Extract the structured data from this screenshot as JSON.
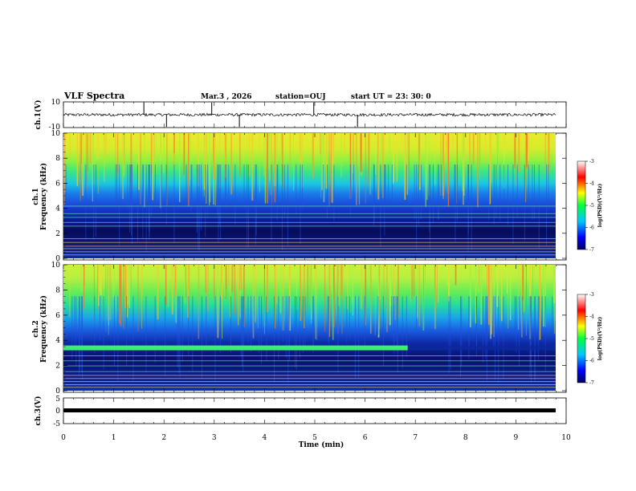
{
  "header": {
    "title": "VLF Spectra",
    "date": "Mar.3  , 2026",
    "station": "station=OUJ",
    "start": "start  UT  =   23: 30: 0"
  },
  "chart_data": [
    {
      "type": "line",
      "name": "ch1-waveform",
      "ylabel": "ch.1(V)",
      "xlim": [
        0,
        10
      ],
      "ylim": [
        -10,
        10
      ],
      "yticks": [
        "10",
        "-10"
      ],
      "baseline": 0,
      "notable_spikes_min": [
        1.6,
        2.05,
        2.95,
        3.5,
        4.98,
        5.85
      ]
    },
    {
      "type": "heatmap",
      "name": "ch1-spectrogram",
      "ylabel_line1": "ch.1",
      "ylabel_line2": "Frequency (kHz)",
      "xlim": [
        0,
        10
      ],
      "ylim": [
        0,
        10
      ],
      "yticks": [
        "0",
        "2",
        "4",
        "6",
        "8",
        "10"
      ],
      "colorbar": {
        "label": "log(PSD)(V²/Hz)",
        "range": [
          -7,
          -3
        ],
        "ticks": [
          "-3",
          "-4",
          "-5",
          "-6",
          "-7"
        ]
      },
      "bands_khz": [
        {
          "from": 7.0,
          "to": 10.0,
          "level": "high"
        },
        {
          "from": 5.2,
          "to": 7.0,
          "level": "mid"
        },
        {
          "from": 3.0,
          "to": 5.2,
          "level": "low"
        },
        {
          "from": 0.0,
          "to": 3.0,
          "level": "very-low"
        }
      ]
    },
    {
      "type": "heatmap",
      "name": "ch2-spectrogram",
      "ylabel_line1": "ch.2",
      "ylabel_line2": "Frequency (kHz)",
      "xlim": [
        0,
        10
      ],
      "ylim": [
        0,
        10
      ],
      "yticks": [
        "0",
        "2",
        "4",
        "6",
        "8",
        "10"
      ],
      "colorbar": {
        "label": "log(PSD)(V²/Hz)",
        "range": [
          -7,
          -3
        ],
        "ticks": [
          "-3",
          "-4",
          "-5",
          "-6",
          "-7"
        ]
      },
      "tone_line": {
        "freq_khz": 3.4,
        "until_min": 6.85
      }
    },
    {
      "type": "line",
      "name": "ch3-waveform",
      "ylabel": "ch.3(V)",
      "xlim": [
        0,
        10
      ],
      "ylim": [
        -5,
        5
      ],
      "yticks": [
        "5",
        "0",
        "-5"
      ],
      "baseline": 0
    }
  ],
  "xaxis": {
    "label": "Time  (min)",
    "ticks": [
      "0",
      "1",
      "2",
      "3",
      "4",
      "5",
      "6",
      "7",
      "8",
      "9",
      "10"
    ]
  },
  "colors": {
    "axis": "#000000",
    "background": "#ffffff"
  }
}
